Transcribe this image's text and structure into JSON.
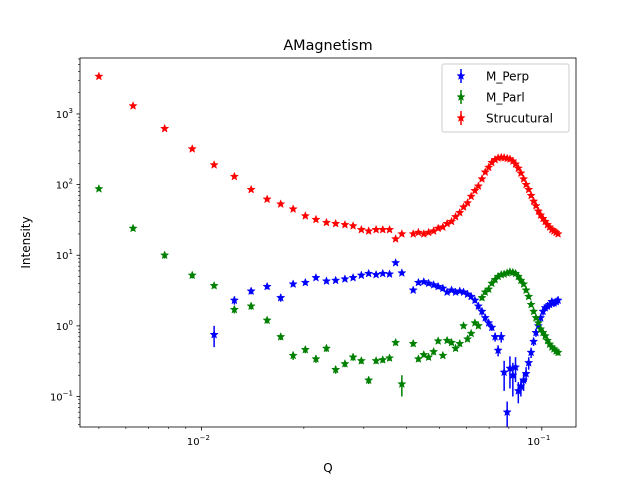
{
  "chart_data": {
    "type": "scatter",
    "title": "AMagnetism",
    "xlabel": "Q",
    "ylabel": "Intensity",
    "xscale": "log",
    "yscale": "log",
    "xlim": [
      0.0044,
      0.126
    ],
    "ylim": [
      0.037,
      6200
    ],
    "grid": false,
    "legend_position": "top-right",
    "x_ticks": [
      {
        "value": 0.01,
        "base": "10",
        "exp": "−2"
      },
      {
        "value": 0.1,
        "base": "10",
        "exp": "−1"
      }
    ],
    "y_ticks": [
      {
        "value": 0.1,
        "base": "10",
        "exp": "−1"
      },
      {
        "value": 1,
        "base": "10",
        "exp": "0"
      },
      {
        "value": 10,
        "base": "10",
        "exp": "1"
      },
      {
        "value": 100,
        "base": "10",
        "exp": "2"
      },
      {
        "value": 1000,
        "base": "10",
        "exp": "3"
      }
    ],
    "series": [
      {
        "name": "M_Perp",
        "color": "#0000ff",
        "marker": "star",
        "x": [
          0.0109,
          0.0125,
          0.014,
          0.0156,
          0.0171,
          0.0186,
          0.0202,
          0.0217,
          0.0233,
          0.0248,
          0.0264,
          0.0279,
          0.0295,
          0.031,
          0.0326,
          0.0341,
          0.0357,
          0.0372,
          0.0388,
          0.0419,
          0.0434,
          0.045,
          0.0465,
          0.0481,
          0.0496,
          0.0512,
          0.0527,
          0.0543,
          0.0558,
          0.0574,
          0.0589,
          0.0605,
          0.062,
          0.0636,
          0.0651,
          0.0667,
          0.0682,
          0.0698,
          0.0713,
          0.0729,
          0.0744,
          0.076,
          0.0775,
          0.0791,
          0.0806,
          0.0822,
          0.0837,
          0.0853,
          0.0868,
          0.0884,
          0.0899,
          0.0915,
          0.093,
          0.0946,
          0.0961,
          0.0977,
          0.0992,
          0.1008,
          0.1023,
          0.1039,
          0.1054,
          0.107,
          0.1085,
          0.1101,
          0.1116
        ],
        "y": [
          0.75,
          2.3,
          3.1,
          3.6,
          2.5,
          3.9,
          4.1,
          4.8,
          4.3,
          4.4,
          4.6,
          4.8,
          5.2,
          5.5,
          5.3,
          5.5,
          5.4,
          7.8,
          5.6,
          3.2,
          4.1,
          4.2,
          4.0,
          3.8,
          3.6,
          3.4,
          3.0,
          3.2,
          3.0,
          3.1,
          3.0,
          2.8,
          2.6,
          2.3,
          1.9,
          1.6,
          1.3,
          1.1,
          0.95,
          0.7,
          0.45,
          0.7,
          0.22,
          0.06,
          0.25,
          0.2,
          0.26,
          0.12,
          0.14,
          0.17,
          0.21,
          0.3,
          0.42,
          0.6,
          0.8,
          1.0,
          1.3,
          1.6,
          1.8,
          1.9,
          2.0,
          2.2,
          2.1,
          2.2,
          2.3
        ],
        "err": [
          0.25,
          0.3,
          0.3,
          0.3,
          0.3,
          0.3,
          0.3,
          0.3,
          0.3,
          0.3,
          0.3,
          0.3,
          0.3,
          0.3,
          0.3,
          0.3,
          0.3,
          0.4,
          0.3,
          0.2,
          0.3,
          0.3,
          0.3,
          0.3,
          0.3,
          0.3,
          0.2,
          0.2,
          0.2,
          0.2,
          0.2,
          0.2,
          0.2,
          0.2,
          0.2,
          0.2,
          0.15,
          0.12,
          0.1,
          0.1,
          0.08,
          0.12,
          0.1,
          0.025,
          0.12,
          0.1,
          0.1,
          0.04,
          0.04,
          0.05,
          0.05,
          0.06,
          0.07,
          0.08,
          0.1,
          0.1,
          0.15,
          0.2,
          0.2,
          0.2,
          0.2,
          0.25,
          0.25,
          0.25,
          0.3
        ]
      },
      {
        "name": "M_Parl",
        "color": "#008000",
        "marker": "star",
        "x": [
          0.005,
          0.0063,
          0.0078,
          0.0094,
          0.0109,
          0.0125,
          0.014,
          0.0156,
          0.0171,
          0.0186,
          0.0202,
          0.0217,
          0.0233,
          0.0248,
          0.0264,
          0.0279,
          0.0295,
          0.031,
          0.0326,
          0.0341,
          0.0357,
          0.0372,
          0.0388,
          0.0419,
          0.0434,
          0.045,
          0.0465,
          0.0481,
          0.0496,
          0.0512,
          0.0527,
          0.0543,
          0.0558,
          0.0574,
          0.0589,
          0.0605,
          0.062,
          0.0636,
          0.0651,
          0.0667,
          0.0682,
          0.0698,
          0.0713,
          0.0729,
          0.0744,
          0.076,
          0.0775,
          0.0791,
          0.0806,
          0.0822,
          0.0837,
          0.0853,
          0.0868,
          0.0884,
          0.0899,
          0.0915,
          0.093,
          0.0946,
          0.0961,
          0.0977,
          0.0992,
          0.1008,
          0.1023,
          0.1039,
          0.1054,
          0.107,
          0.1085,
          0.1101,
          0.1116
        ],
        "y": [
          87,
          24,
          10,
          5.2,
          3.7,
          1.7,
          1.9,
          1.2,
          0.7,
          0.38,
          0.46,
          0.34,
          0.48,
          0.24,
          0.29,
          0.36,
          0.32,
          0.17,
          0.32,
          0.33,
          0.35,
          0.58,
          0.15,
          0.56,
          0.34,
          0.39,
          0.36,
          0.43,
          0.61,
          0.38,
          0.62,
          0.58,
          0.48,
          0.56,
          1.0,
          0.65,
          0.78,
          1.1,
          1.0,
          2.5,
          3.0,
          3.3,
          4.0,
          4.5,
          5.0,
          5.3,
          5.4,
          5.6,
          5.8,
          5.7,
          5.5,
          5.0,
          4.4,
          3.9,
          3.2,
          2.6,
          2.0,
          1.6,
          1.3,
          1.1,
          0.9,
          0.8,
          0.72,
          0.62,
          0.55,
          0.5,
          0.47,
          0.44,
          0.42
        ],
        "err": [
          5,
          2,
          1,
          0.5,
          0.3,
          0.2,
          0.2,
          0.12,
          0.07,
          0.05,
          0.05,
          0.04,
          0.05,
          0.03,
          0.03,
          0.04,
          0.03,
          0.02,
          0.03,
          0.03,
          0.03,
          0.05,
          0.05,
          0.05,
          0.03,
          0.03,
          0.03,
          0.04,
          0.05,
          0.03,
          0.05,
          0.05,
          0.04,
          0.05,
          0.08,
          0.05,
          0.06,
          0.08,
          0.08,
          0.2,
          0.25,
          0.3,
          0.3,
          0.35,
          0.4,
          0.4,
          0.4,
          0.45,
          0.45,
          0.45,
          0.4,
          0.4,
          0.35,
          0.3,
          0.25,
          0.2,
          0.15,
          0.12,
          0.1,
          0.09,
          0.08,
          0.07,
          0.06,
          0.05,
          0.05,
          0.04,
          0.04,
          0.04,
          0.04
        ]
      },
      {
        "name": "Strucutural",
        "color": "#ff0000",
        "marker": "star",
        "x": [
          0.005,
          0.0063,
          0.0078,
          0.0094,
          0.0109,
          0.0125,
          0.014,
          0.0156,
          0.0171,
          0.0186,
          0.0202,
          0.0217,
          0.0233,
          0.0248,
          0.0264,
          0.0279,
          0.0295,
          0.031,
          0.0326,
          0.0341,
          0.0357,
          0.0372,
          0.0388,
          0.0419,
          0.0434,
          0.045,
          0.0465,
          0.0481,
          0.0496,
          0.0512,
          0.0527,
          0.0543,
          0.0558,
          0.0574,
          0.0589,
          0.0605,
          0.062,
          0.0636,
          0.0651,
          0.0667,
          0.0682,
          0.0698,
          0.0713,
          0.0729,
          0.0744,
          0.076,
          0.0775,
          0.0791,
          0.0806,
          0.0822,
          0.0837,
          0.0853,
          0.0868,
          0.0884,
          0.0899,
          0.0915,
          0.093,
          0.0946,
          0.0961,
          0.0977,
          0.0992,
          0.1008,
          0.1023,
          0.1039,
          0.1054,
          0.107,
          0.1085,
          0.1101,
          0.1116
        ],
        "y": [
          3400,
          1300,
          620,
          320,
          190,
          130,
          85,
          62,
          53,
          45,
          36,
          32,
          29,
          28,
          27,
          26,
          23,
          22,
          23,
          23,
          23,
          17,
          20,
          20,
          21,
          20,
          21,
          22,
          24,
          25,
          28,
          30,
          35,
          40,
          48,
          55,
          68,
          82,
          95,
          120,
          150,
          175,
          205,
          225,
          238,
          242,
          240,
          235,
          230,
          215,
          195,
          170,
          145,
          120,
          100,
          85,
          70,
          58,
          50,
          42,
          37,
          33,
          30,
          27,
          25,
          23,
          22,
          21,
          20
        ],
        "err": [
          50,
          20,
          10,
          6,
          4,
          3,
          2,
          1.5,
          1.2,
          1,
          1,
          1,
          1,
          1,
          1,
          1,
          1,
          1,
          1,
          1,
          1,
          1,
          1,
          1,
          1,
          1,
          1,
          1,
          1,
          1,
          1,
          1,
          1.2,
          1.4,
          1.6,
          2,
          2.4,
          3,
          3.4,
          4,
          5,
          6,
          7,
          8,
          8,
          8,
          8,
          8,
          8,
          7,
          7,
          6,
          5,
          4,
          4,
          3,
          2.5,
          2,
          2,
          1.6,
          1.4,
          1.2,
          1.1,
          1,
          1,
          1,
          1,
          1,
          1
        ]
      }
    ]
  }
}
